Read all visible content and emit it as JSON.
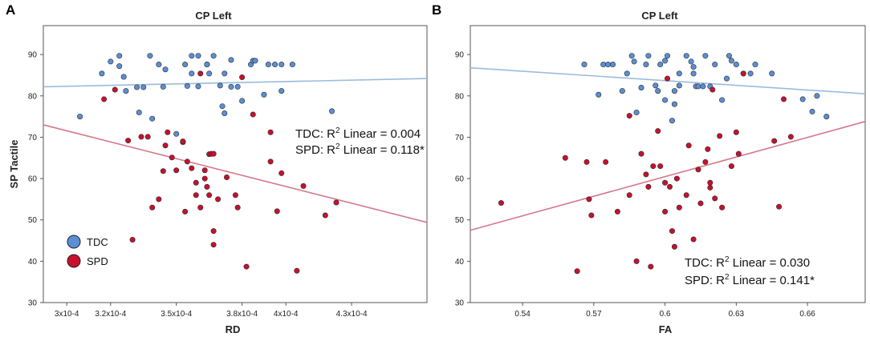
{
  "chart_data": [
    {
      "type": "scatter",
      "panel_label": "A",
      "title": "CP Left",
      "xlabel": "RD",
      "ylabel": "SP Tactile",
      "xlim": [
        0.0002893,
        0.0004644
      ],
      "ylim": [
        30,
        97
      ],
      "x_ticks": [
        0.0003,
        0.00032,
        0.00035,
        0.00038,
        0.0004,
        0.00043
      ],
      "x_tick_labels": [
        "3x10-4",
        "3.2x10-4",
        "3.5x10-4",
        "3.8x10-4",
        "4x10-4",
        "4.3x10-4"
      ],
      "y_ticks": [
        30,
        40,
        50,
        60,
        70,
        80,
        90
      ],
      "y_tick_labels": [
        "30",
        "40",
        "50",
        "60",
        "70",
        "80",
        "90"
      ],
      "annotations": [
        {
          "group": "TDC",
          "prefix": "TDC: R",
          "sup": "2",
          "suffix": " Linear = 0.004"
        },
        {
          "group": "SPD",
          "prefix": "SPD: R",
          "sup": "2",
          "suffix": " Linear = 0.118*"
        }
      ],
      "legend": {
        "position": "bottom-left",
        "entries": [
          {
            "label": "TDC",
            "color": "#5B8FD4"
          },
          {
            "label": "SPD",
            "color": "#C8102E"
          }
        ]
      },
      "series": [
        {
          "name": "TDC",
          "color": "#5B8FD4",
          "line_color": "#9BBBDD",
          "fit": {
            "x": [
              0.0002893,
              0.0004644
            ],
            "y": [
              82.2,
              84.2
            ]
          },
          "points": [
            [
              0.000306,
              75.0
            ],
            [
              0.000316,
              85.4
            ],
            [
              0.00032,
              88.3
            ],
            [
              0.000324,
              87.2
            ],
            [
              0.000324,
              89.7
            ],
            [
              0.000326,
              84.6
            ],
            [
              0.000327,
              81.2
            ],
            [
              0.000332,
              82.1
            ],
            [
              0.000335,
              82.1
            ],
            [
              0.000333,
              76.0
            ],
            [
              0.000338,
              89.7
            ],
            [
              0.000339,
              74.5
            ],
            [
              0.000342,
              87.6
            ],
            [
              0.000344,
              82.2
            ],
            [
              0.000345,
              86.4
            ],
            [
              0.00035,
              70.8
            ],
            [
              0.000353,
              68.8
            ],
            [
              0.000354,
              87.6
            ],
            [
              0.000355,
              82.4
            ],
            [
              0.000357,
              89.7
            ],
            [
              0.000357,
              85.4
            ],
            [
              0.00036,
              82.3
            ],
            [
              0.00036,
              89.7
            ],
            [
              0.000364,
              87.6
            ],
            [
              0.000364,
              87.6
            ],
            [
              0.000365,
              85.4
            ],
            [
              0.000367,
              89.7
            ],
            [
              0.00037,
              82.5
            ],
            [
              0.000371,
              77.5
            ],
            [
              0.000372,
              85.4
            ],
            [
              0.000372,
              75.8
            ],
            [
              0.000375,
              82.2
            ],
            [
              0.000375,
              88.7
            ],
            [
              0.000378,
              82.2
            ],
            [
              0.00038,
              78.8
            ],
            [
              0.000384,
              87.6
            ],
            [
              0.000385,
              88.5
            ],
            [
              0.000386,
              88.5
            ],
            [
              0.00039,
              80.3
            ],
            [
              0.000392,
              87.6
            ],
            [
              0.000395,
              87.6
            ],
            [
              0.000398,
              81.2
            ],
            [
              0.000398,
              87.6
            ],
            [
              0.000403,
              87.6
            ],
            [
              0.000421,
              76.3
            ]
          ]
        },
        {
          "name": "SPD",
          "color": "#C8102E",
          "line_color": "#D4788A",
          "fit": {
            "x": [
              0.0002893,
              0.0004644
            ],
            "y": [
              73.0,
              49.4
            ]
          },
          "points": [
            [
              0.000317,
              79.2
            ],
            [
              0.000322,
              81.5
            ],
            [
              0.000328,
              69.2
            ],
            [
              0.00033,
              45.2
            ],
            [
              0.000334,
              70.1
            ],
            [
              0.000337,
              70.1
            ],
            [
              0.000339,
              53.0
            ],
            [
              0.000342,
              55.0
            ],
            [
              0.000344,
              61.8
            ],
            [
              0.000345,
              68.0
            ],
            [
              0.000346,
              71.2
            ],
            [
              0.000348,
              65.1
            ],
            [
              0.00035,
              62.0
            ],
            [
              0.000353,
              69.0
            ],
            [
              0.000354,
              52.0
            ],
            [
              0.000355,
              64.1
            ],
            [
              0.000357,
              62.5
            ],
            [
              0.000359,
              56.0
            ],
            [
              0.000359,
              59.0
            ],
            [
              0.000361,
              53.0
            ],
            [
              0.000361,
              85.4
            ],
            [
              0.000363,
              62.0
            ],
            [
              0.000363,
              60.0
            ],
            [
              0.000364,
              58.0
            ],
            [
              0.000365,
              65.9
            ],
            [
              0.000365,
              56.0
            ],
            [
              0.000366,
              66.0
            ],
            [
              0.000367,
              47.3
            ],
            [
              0.000367,
              44.0
            ],
            [
              0.000367,
              66.0
            ],
            [
              0.000369,
              55.0
            ],
            [
              0.000373,
              60.3
            ],
            [
              0.000377,
              56.0
            ],
            [
              0.000378,
              53.0
            ],
            [
              0.00038,
              84.5
            ],
            [
              0.000382,
              38.7
            ],
            [
              0.000385,
              75.5
            ],
            [
              0.000393,
              71.2
            ],
            [
              0.000393,
              64.1
            ],
            [
              0.000396,
              52.1
            ],
            [
              0.000398,
              61.3
            ],
            [
              0.000405,
              37.7
            ],
            [
              0.000408,
              58.2
            ],
            [
              0.000418,
              51.1
            ],
            [
              0.000423,
              54.2
            ]
          ]
        }
      ]
    },
    {
      "type": "scatter",
      "panel_label": "B",
      "title": "CP Left",
      "xlabel": "FA",
      "ylabel": "",
      "xlim": [
        0.518,
        0.6843
      ],
      "ylim": [
        30,
        97
      ],
      "x_ticks": [
        0.54,
        0.57,
        0.6,
        0.63,
        0.66
      ],
      "x_tick_labels": [
        "0.54",
        "0.57",
        "0.6",
        "0.63",
        "0.66"
      ],
      "y_ticks": [
        30,
        40,
        50,
        60,
        70,
        80,
        90
      ],
      "y_tick_labels": [
        "30",
        "40",
        "50",
        "60",
        "70",
        "80",
        "90"
      ],
      "annotations": [
        {
          "group": "TDC",
          "prefix": "TDC: R",
          "sup": "2",
          "suffix": " Linear = 0.030"
        },
        {
          "group": "SPD",
          "prefix": "SPD: R",
          "sup": "2",
          "suffix": " Linear = 0.141*"
        }
      ],
      "series": [
        {
          "name": "TDC",
          "color": "#5B8FD4",
          "line_color": "#9BBBDD",
          "fit": {
            "x": [
              0.518,
              0.6843
            ],
            "y": [
              86.8,
              80.5
            ]
          },
          "points": [
            [
              0.566,
              87.6
            ],
            [
              0.572,
              80.3
            ],
            [
              0.574,
              87.6
            ],
            [
              0.576,
              87.6
            ],
            [
              0.578,
              87.6
            ],
            [
              0.582,
              81.2
            ],
            [
              0.584,
              85.4
            ],
            [
              0.586,
              89.7
            ],
            [
              0.587,
              88.3
            ],
            [
              0.588,
              76.0
            ],
            [
              0.59,
              82.0
            ],
            [
              0.592,
              87.6
            ],
            [
              0.593,
              89.7
            ],
            [
              0.596,
              82.5
            ],
            [
              0.597,
              81.2
            ],
            [
              0.598,
              87.6
            ],
            [
              0.6,
              88.5
            ],
            [
              0.6,
              79.0
            ],
            [
              0.601,
              89.7
            ],
            [
              0.603,
              74.0
            ],
            [
              0.604,
              81.2
            ],
            [
              0.604,
              78.0
            ],
            [
              0.606,
              85.4
            ],
            [
              0.606,
              82.5
            ],
            [
              0.609,
              89.7
            ],
            [
              0.611,
              88.3
            ],
            [
              0.612,
              87.0
            ],
            [
              0.612,
              85.4
            ],
            [
              0.613,
              82.3
            ],
            [
              0.614,
              82.3
            ],
            [
              0.616,
              82.3
            ],
            [
              0.617,
              89.7
            ],
            [
              0.619,
              82.3
            ],
            [
              0.621,
              87.6
            ],
            [
              0.624,
              79.0
            ],
            [
              0.626,
              84.2
            ],
            [
              0.627,
              89.7
            ],
            [
              0.628,
              88.5
            ],
            [
              0.63,
              87.6
            ],
            [
              0.633,
              85.4
            ],
            [
              0.636,
              85.4
            ],
            [
              0.638,
              87.6
            ],
            [
              0.645,
              85.4
            ],
            [
              0.658,
              79.2
            ],
            [
              0.662,
              76.2
            ],
            [
              0.664,
              80.0
            ],
            [
              0.668,
              75.0
            ]
          ]
        },
        {
          "name": "SPD",
          "color": "#C8102E",
          "line_color": "#D4788A",
          "fit": {
            "x": [
              0.518,
              0.6843
            ],
            "y": [
              47.5,
              73.8
            ]
          },
          "points": [
            [
              0.531,
              54.1
            ],
            [
              0.558,
              65.0
            ],
            [
              0.563,
              37.6
            ],
            [
              0.567,
              64.0
            ],
            [
              0.568,
              55.0
            ],
            [
              0.569,
              51.1
            ],
            [
              0.575,
              64.0
            ],
            [
              0.58,
              52.0
            ],
            [
              0.585,
              75.2
            ],
            [
              0.585,
              56.0
            ],
            [
              0.588,
              40.0
            ],
            [
              0.59,
              66.0
            ],
            [
              0.592,
              61.0
            ],
            [
              0.593,
              58.0
            ],
            [
              0.594,
              38.7
            ],
            [
              0.595,
              63.0
            ],
            [
              0.597,
              71.5
            ],
            [
              0.598,
              63.0
            ],
            [
              0.6,
              52.0
            ],
            [
              0.6,
              59.0
            ],
            [
              0.601,
              84.2
            ],
            [
              0.602,
              58.0
            ],
            [
              0.603,
              47.3
            ],
            [
              0.604,
              43.5
            ],
            [
              0.605,
              60.0
            ],
            [
              0.606,
              53.0
            ],
            [
              0.609,
              56.0
            ],
            [
              0.61,
              68.0
            ],
            [
              0.612,
              45.3
            ],
            [
              0.614,
              62.2
            ],
            [
              0.615,
              54.0
            ],
            [
              0.617,
              64.0
            ],
            [
              0.618,
              67.1
            ],
            [
              0.619,
              59.0
            ],
            [
              0.619,
              57.8
            ],
            [
              0.62,
              81.5
            ],
            [
              0.621,
              55.2
            ],
            [
              0.623,
              70.3
            ],
            [
              0.624,
              53.0
            ],
            [
              0.628,
              63.0
            ],
            [
              0.63,
              71.2
            ],
            [
              0.631,
              66.0
            ],
            [
              0.633,
              85.4
            ],
            [
              0.646,
              69.1
            ],
            [
              0.648,
              53.2
            ],
            [
              0.65,
              79.2
            ],
            [
              0.653,
              70.1
            ]
          ]
        }
      ]
    }
  ]
}
